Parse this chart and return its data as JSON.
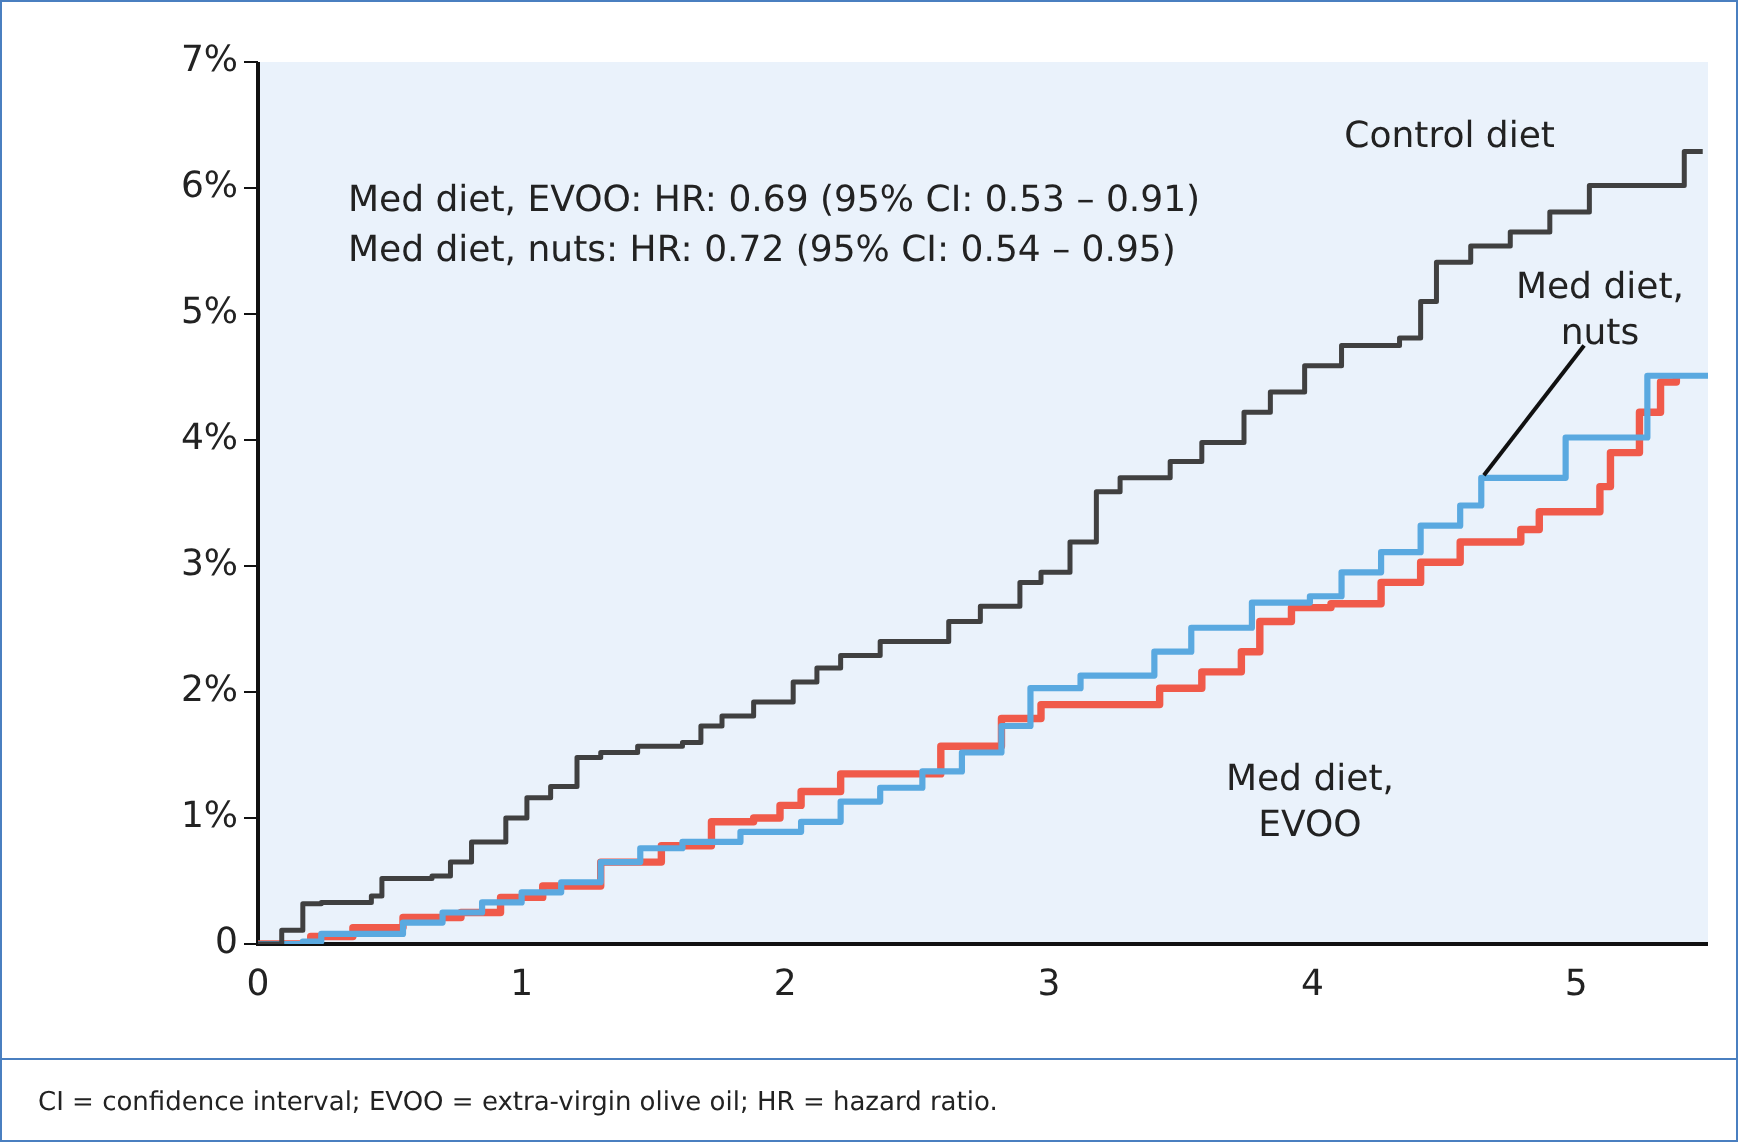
{
  "chart_data": {
    "type": "step",
    "xlim": [
      0,
      5.5
    ],
    "xticks": [
      0,
      1,
      2,
      3,
      4,
      5
    ],
    "ylim": [
      0,
      7
    ],
    "yticks": [
      0,
      {
        "value": 1,
        "label": "1%"
      },
      {
        "value": 2,
        "label": "2%"
      },
      {
        "value": 3,
        "label": "3%"
      },
      {
        "value": 4,
        "label": "4%"
      },
      {
        "value": 5,
        "label": "5%"
      },
      {
        "value": 6,
        "label": "6%"
      },
      {
        "value": 7,
        "label": "7%"
      }
    ],
    "grid": false,
    "legend": false,
    "marker": "none",
    "line_style": "solid",
    "series": [
      {
        "name": "Control diet",
        "color": "#404040",
        "x": [
          0,
          0.09,
          0.17,
          0.24,
          0.43,
          0.47,
          0.66,
          0.73,
          0.81,
          0.94,
          1.02,
          1.11,
          1.21,
          1.3,
          1.44,
          1.61,
          1.68,
          1.76,
          1.88,
          1.97,
          2.03,
          2.12,
          2.21,
          2.36,
          2.58,
          2.62,
          2.74,
          2.89,
          2.97,
          3.08,
          3.18,
          3.27,
          3.46,
          3.58,
          3.74,
          3.84,
          3.97,
          4.11,
          4.33,
          4.41,
          4.47,
          4.6,
          4.75,
          4.9,
          5.05,
          5.36,
          5.41,
          5.48
        ],
        "values": [
          0,
          0.11,
          0.32,
          0.33,
          0.38,
          0.52,
          0.54,
          0.65,
          0.81,
          1.0,
          1.16,
          1.25,
          1.48,
          1.52,
          1.57,
          1.6,
          1.73,
          1.81,
          1.92,
          1.92,
          2.08,
          2.19,
          2.29,
          2.4,
          2.4,
          2.56,
          2.68,
          2.87,
          2.95,
          3.19,
          3.59,
          3.7,
          3.83,
          3.98,
          4.22,
          4.38,
          4.59,
          4.75,
          4.81,
          5.1,
          5.41,
          5.54,
          5.65,
          5.81,
          6.02,
          6.02,
          6.29,
          6.29
        ]
      },
      {
        "name": "Med diet, nuts",
        "color": "#5aa9e0",
        "x": [
          0,
          0.17,
          0.24,
          0.55,
          0.7,
          0.85,
          1.0,
          1.15,
          1.3,
          1.45,
          1.61,
          1.83,
          1.98,
          2.06,
          2.21,
          2.36,
          2.52,
          2.67,
          2.82,
          2.93,
          3.12,
          3.27,
          3.4,
          3.54,
          3.77,
          3.99,
          4.11,
          4.26,
          4.41,
          4.56,
          4.64,
          4.9,
          4.96,
          5.17,
          5.27,
          5.5
        ],
        "values": [
          0,
          0.02,
          0.08,
          0.17,
          0.25,
          0.33,
          0.41,
          0.49,
          0.65,
          0.76,
          0.81,
          0.89,
          0.89,
          0.97,
          1.13,
          1.24,
          1.37,
          1.52,
          1.73,
          2.03,
          2.13,
          2.13,
          2.32,
          2.51,
          2.71,
          2.76,
          2.95,
          3.11,
          3.32,
          3.48,
          3.7,
          3.7,
          4.02,
          4.02,
          4.51,
          4.51
        ]
      },
      {
        "name": "Med diet, EVOO",
        "color": "#f05a4a",
        "x": [
          0,
          0.2,
          0.36,
          0.55,
          0.77,
          0.92,
          1.08,
          1.3,
          1.53,
          1.72,
          1.88,
          1.98,
          2.06,
          2.21,
          2.36,
          2.59,
          2.82,
          2.97,
          3.31,
          3.42,
          3.58,
          3.73,
          3.8,
          3.92,
          4.07,
          4.26,
          4.41,
          4.56,
          4.79,
          4.86,
          5.09,
          5.13,
          5.24,
          5.32,
          5.38
        ],
        "values": [
          0,
          0.06,
          0.13,
          0.21,
          0.25,
          0.37,
          0.46,
          0.65,
          0.78,
          0.97,
          1.0,
          1.1,
          1.21,
          1.35,
          1.35,
          1.57,
          1.79,
          1.9,
          1.9,
          2.03,
          2.16,
          2.32,
          2.56,
          2.67,
          2.7,
          2.87,
          3.03,
          3.19,
          3.29,
          3.43,
          3.63,
          3.9,
          4.22,
          4.46,
          4.51
        ]
      }
    ],
    "annotations": [
      "Med diet, EVOO: HR: 0.69 (95% CI: 0.53 – 0.91)",
      "Med diet, nuts: HR: 0.72 (95% CI: 0.54 – 0.95)",
      "CI = confidence interval; EVOO = extra-virgin olive oil; HR = hazard ratio."
    ]
  }
}
